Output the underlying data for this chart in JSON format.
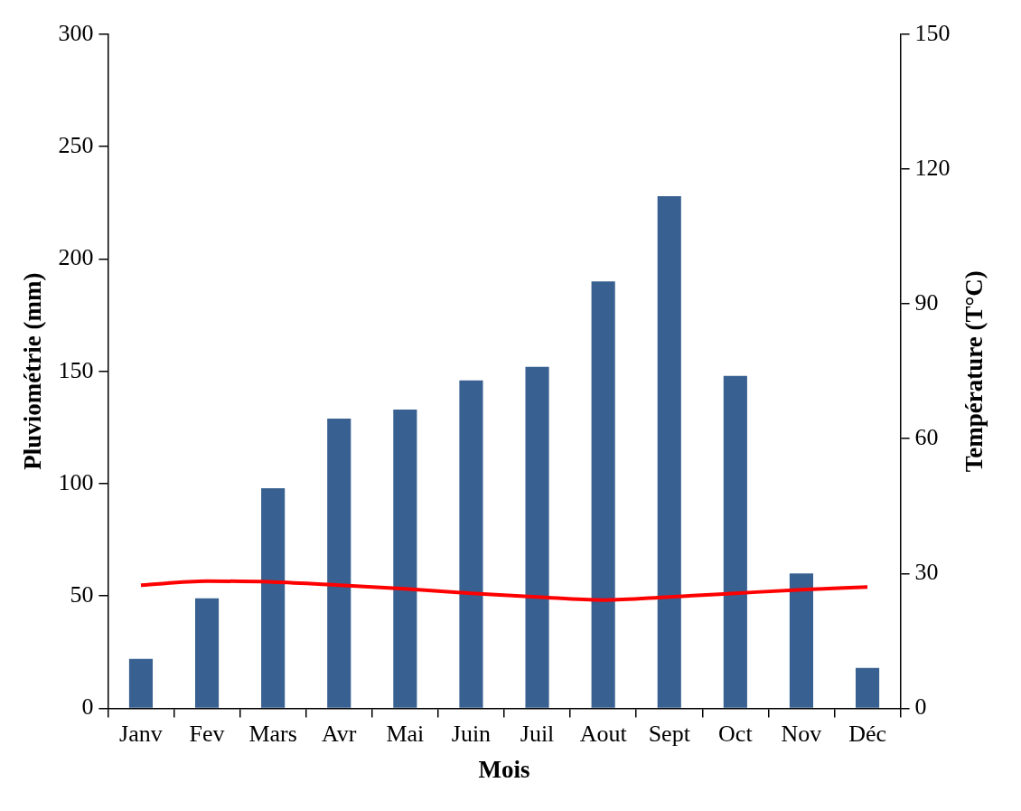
{
  "chart_data": {
    "type": "bar",
    "xlabel": "Mois",
    "ylabel": "Pluviométrie (mm)",
    "y2label": "Température (T°C)",
    "categories": [
      "Janv",
      "Fev",
      "Mars",
      "Avr",
      "Mai",
      "Juin",
      "Juil",
      "Aout",
      "Sept",
      "Oct",
      "Nov",
      "Déc"
    ],
    "series": [
      {
        "color": "#386090",
        "values": [
          22,
          49,
          98,
          129,
          133,
          146,
          152,
          190,
          228,
          148,
          60,
          18
        ]
      },
      {
        "type": "line",
        "axis": "y2",
        "color": "#ff0000",
        "values": [
          27.4,
          28.3,
          28.1,
          27.4,
          26.6,
          25.6,
          24.8,
          24.1,
          24.8,
          25.6,
          26.4,
          27.0
        ]
      }
    ],
    "ylim": [
      0,
      300
    ],
    "yticks": [
      0,
      50,
      100,
      150,
      200,
      250,
      300
    ],
    "y2lim": [
      0,
      150
    ],
    "y2ticks": [
      0,
      30,
      60,
      90,
      120,
      150
    ]
  }
}
